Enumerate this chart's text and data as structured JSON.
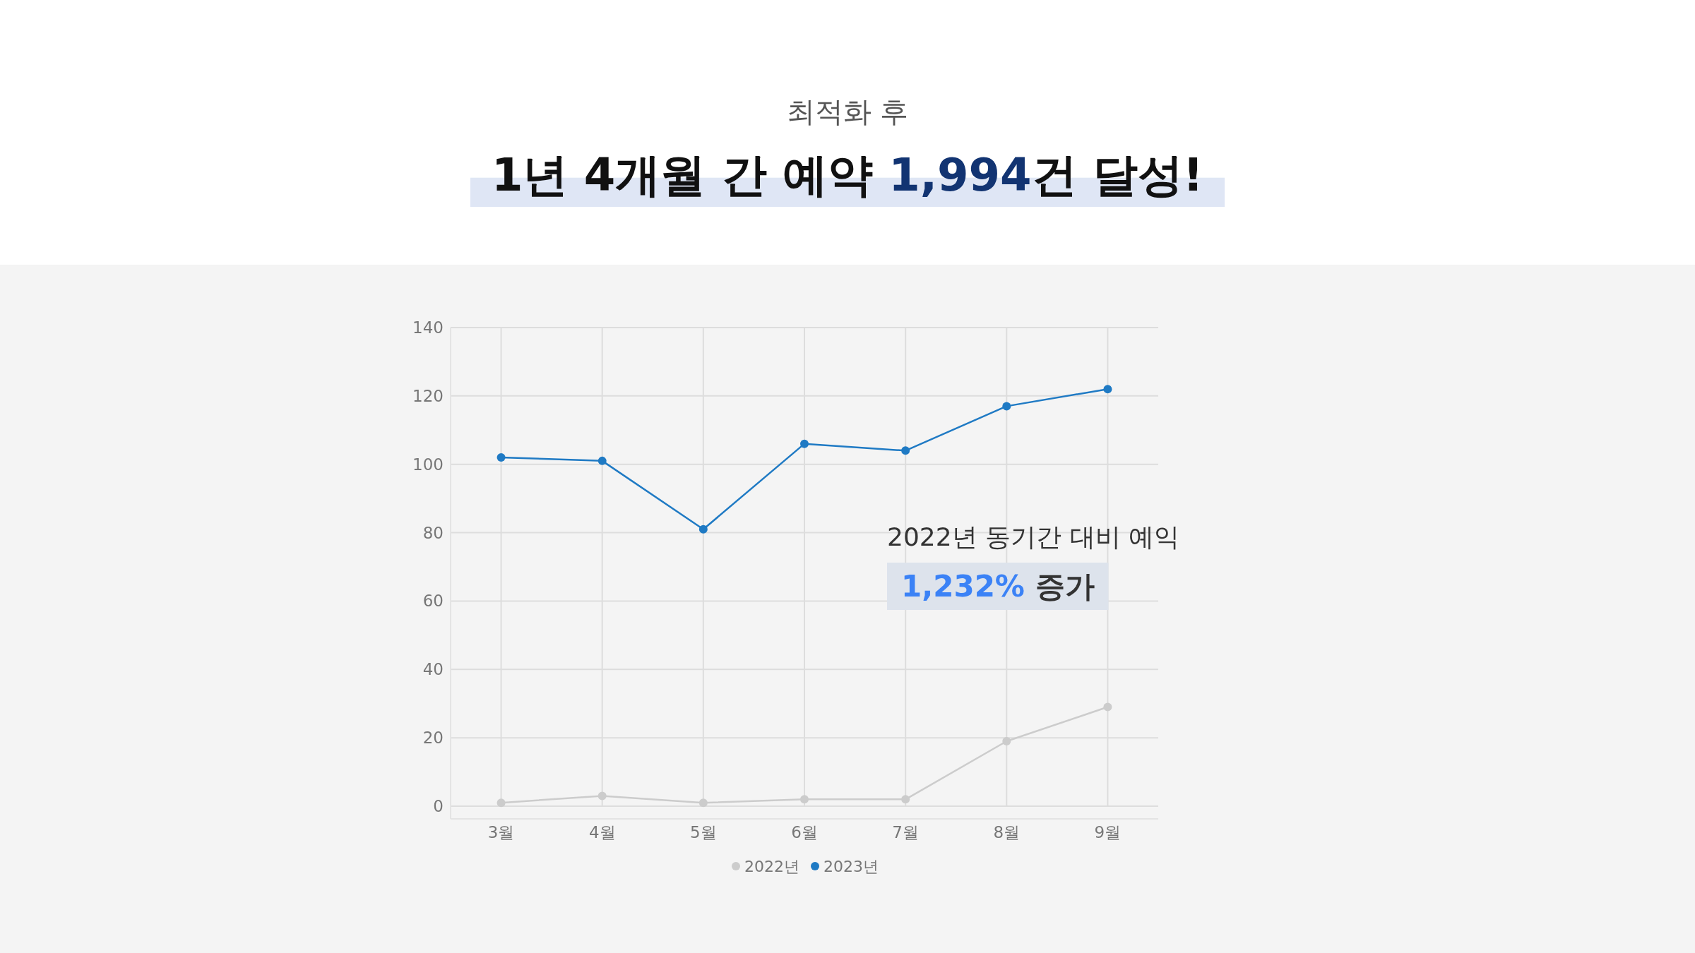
{
  "chart_data": {
    "type": "line",
    "subtitle": "최적화 후",
    "title": "1년 4개월 간 예약 1,994건 달성!",
    "categories": [
      "3월",
      "4월",
      "5월",
      "6월",
      "7월",
      "8월",
      "9월"
    ],
    "series": [
      {
        "name": "2022년",
        "color": "#cccccc",
        "values": [
          1,
          3,
          1,
          2,
          2,
          19,
          29
        ]
      },
      {
        "name": "2023년",
        "color": "#1f7ac4",
        "values": [
          102,
          101,
          81,
          106,
          104,
          117,
          122
        ]
      }
    ],
    "ylim": [
      0,
      140
    ],
    "yticks": [
      0,
      20,
      40,
      60,
      80,
      100,
      120,
      140
    ],
    "grid": true,
    "marker": "circle",
    "legend": "bottom",
    "annotations": [
      "2022년 동기간 대비 예익",
      "1,232% 증가"
    ]
  }
}
